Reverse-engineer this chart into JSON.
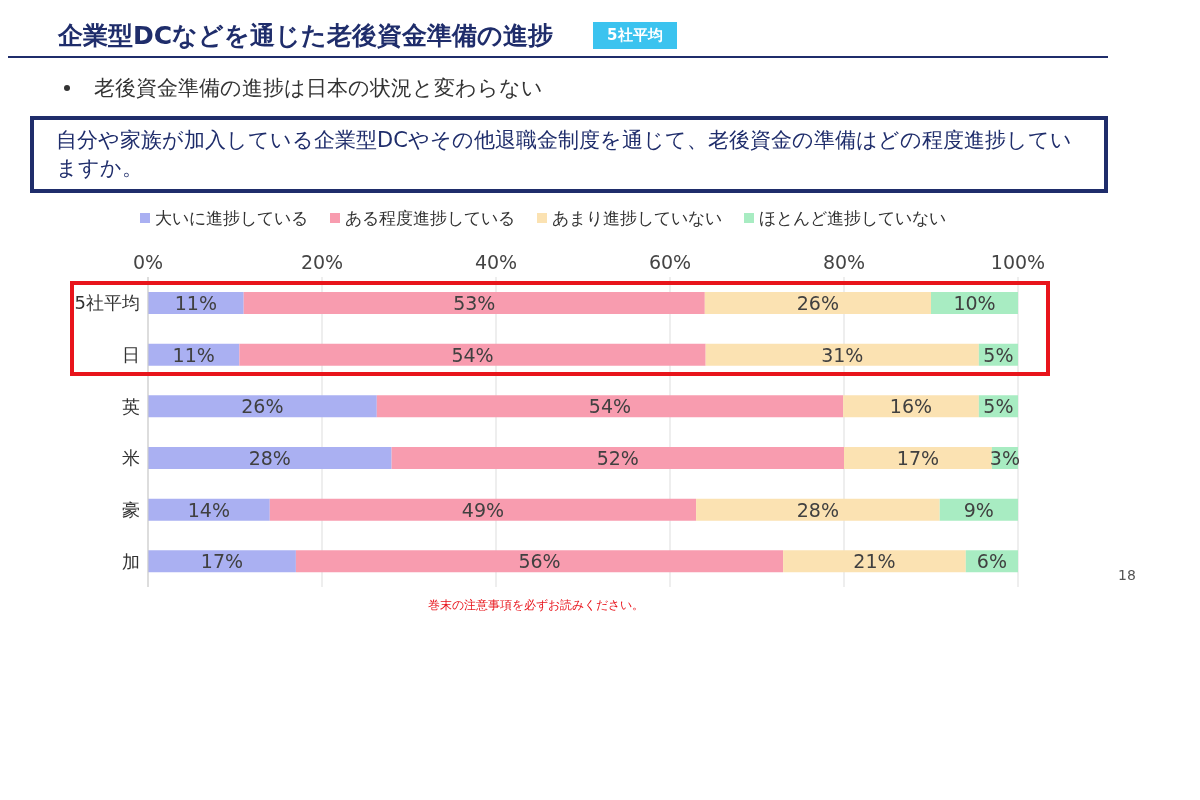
{
  "chart_data": {
    "type": "bar",
    "orientation": "horizontal",
    "stacked": true,
    "title": "企業型DCなどを通じた老後資金準備の進捗",
    "subtitle": "5社平均",
    "annotations": [
      "老後資金準備の進捗は日本の状況と変わらない",
      "自分や家族が加入している企業型DCやその他退職金制度を通じて、老後資金の準備はどの程度進捗していますか。",
      "巻末の注意事項を必ずお読みください。",
      "18"
    ],
    "categories": [
      "5社平均",
      "日",
      "英",
      "米",
      "豪",
      "加"
    ],
    "series": [
      {
        "name": "大いに進捗している",
        "color": "#aab0f2",
        "values": [
          11,
          10.5,
          26.3,
          28,
          14,
          17
        ],
        "value_labels": [
          "11%",
          "11%",
          "26%",
          "28%",
          "14%",
          "17%"
        ]
      },
      {
        "name": "ある程度進捗している",
        "color": "#f89caf",
        "values": [
          53,
          53.6,
          53.6,
          52,
          49,
          56
        ],
        "value_labels": [
          "53%",
          "54%",
          "54%",
          "52%",
          "49%",
          "56%"
        ]
      },
      {
        "name": "あまり進捗していない",
        "color": "#fbe2b2",
        "values": [
          26,
          31.4,
          15.6,
          17,
          28,
          21
        ],
        "value_labels": [
          "26%",
          "31%",
          "16%",
          "17%",
          "28%",
          "21%"
        ]
      },
      {
        "name": "ほとんど進捗していない",
        "color": "#a8ecc2",
        "values": [
          10,
          4.5,
          4.5,
          3,
          9,
          6
        ],
        "value_labels": [
          "10%",
          "5%",
          "5%",
          "3%",
          "9%",
          "6%"
        ]
      }
    ],
    "xlim": [
      0,
      100
    ],
    "xticks": [
      {
        "value": 0,
        "label": "0%"
      },
      {
        "value": 20,
        "label": "20%"
      },
      {
        "value": 40,
        "label": "40%"
      },
      {
        "value": 60,
        "label": "60%"
      },
      {
        "value": 80,
        "label": "80%"
      },
      {
        "value": 100,
        "label": "100%"
      }
    ],
    "grid": "x",
    "legend": "top"
  }
}
